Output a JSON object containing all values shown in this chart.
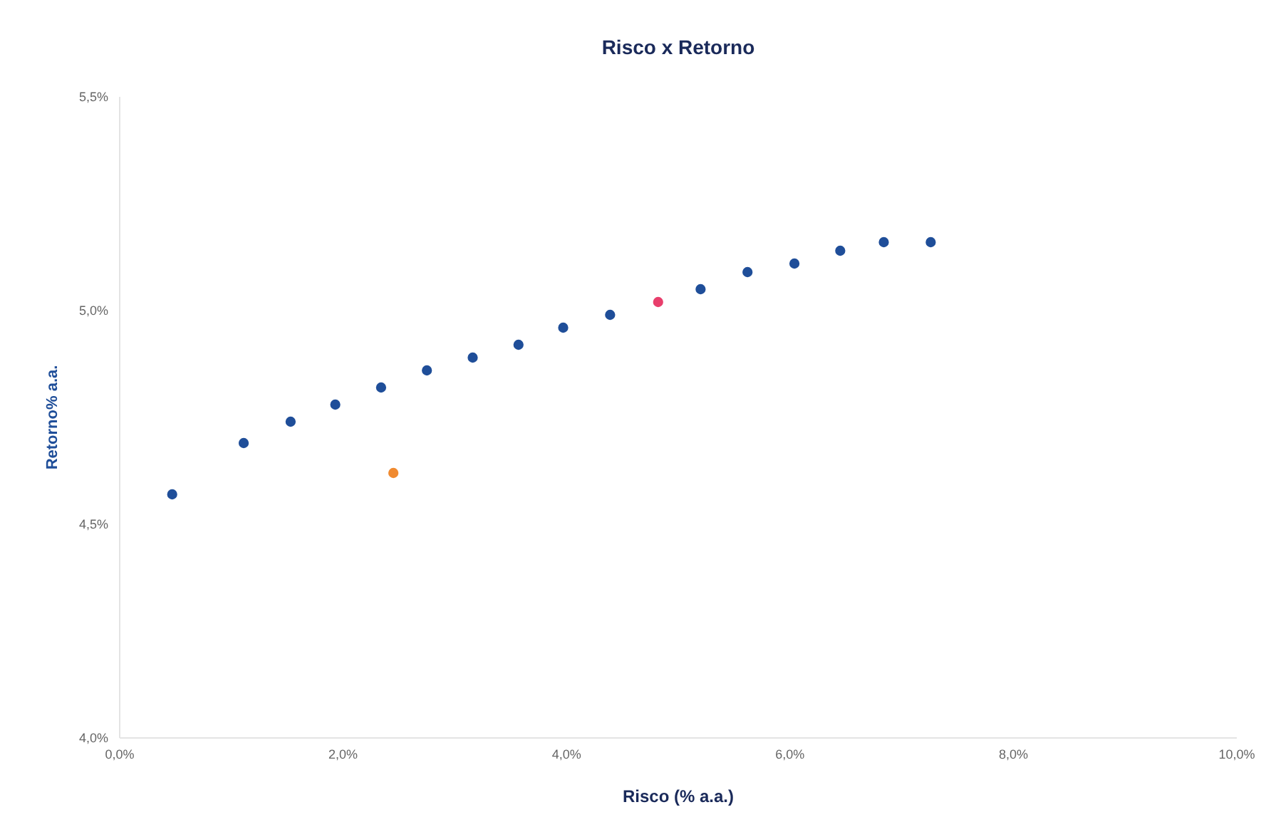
{
  "chart_data": {
    "type": "scatter",
    "title": "Risco x Retorno",
    "xlabel": "Risco (% a.a.)",
    "ylabel": "Retorno% a.a.",
    "xlim": [
      0,
      10
    ],
    "xticks": [
      {
        "value": 0,
        "label": "0,0%"
      },
      {
        "value": 2,
        "label": "2,0%"
      },
      {
        "value": 4,
        "label": "4,0%"
      },
      {
        "value": 6,
        "label": "6,0%"
      },
      {
        "value": 8,
        "label": "8,0%"
      },
      {
        "value": 10,
        "label": "10,0%"
      }
    ],
    "ylim": [
      4,
      5.5
    ],
    "yticks": [
      {
        "value": 4,
        "label": "4,0%"
      },
      {
        "value": 4.5,
        "label": "4,5%"
      },
      {
        "value": 5,
        "label": "5,0%"
      },
      {
        "value": 5.5,
        "label": "5,5%"
      }
    ],
    "marker": "circle",
    "series": [
      {
        "color": "#1f4e99",
        "x": [
          0.47,
          1.11,
          1.53,
          1.93,
          2.34,
          2.75,
          3.16,
          3.57,
          3.97,
          4.39,
          5.2,
          5.62,
          6.04,
          6.45,
          6.84,
          7.26
        ],
        "values": [
          4.57,
          4.69,
          4.74,
          4.78,
          4.82,
          4.86,
          4.89,
          4.92,
          4.96,
          4.99,
          5.05,
          5.09,
          5.11,
          5.14,
          5.16,
          5.16
        ]
      },
      {
        "color": "#e83e6c",
        "x": [
          4.82
        ],
        "values": [
          5.02
        ]
      },
      {
        "color": "#f08a30",
        "x": [
          2.45
        ],
        "values": [
          4.62
        ]
      }
    ]
  }
}
